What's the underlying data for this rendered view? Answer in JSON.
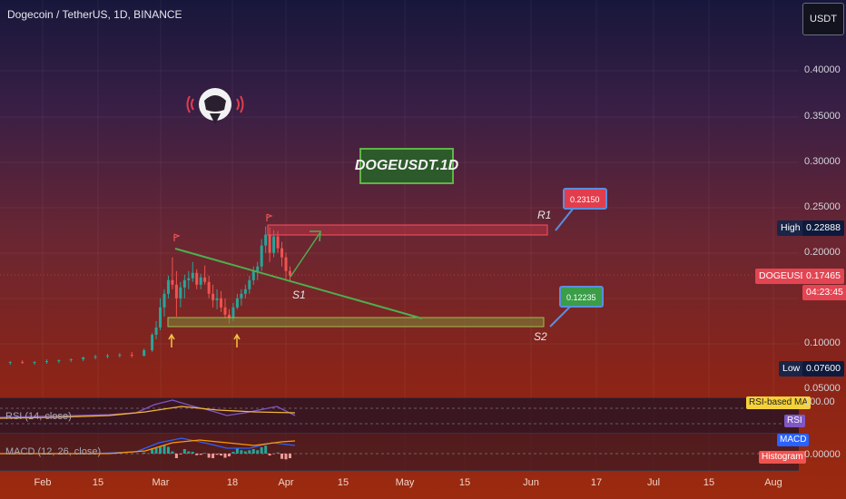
{
  "header": {
    "title": "Dogecoin / TetherUS, 1D, BINANCE",
    "currency_button": "USDT"
  },
  "price_axis": {
    "ticks": [
      "0.40000",
      "0.35000",
      "0.30000",
      "0.25000",
      "0.20000",
      "0.10000",
      "0.05000"
    ],
    "high": {
      "label": "High",
      "value": "0.22888"
    },
    "low": {
      "label": "Low",
      "value": "0.07600"
    },
    "symbol": {
      "label": "DOGEUSDT",
      "price": "0.17465",
      "countdown": "04:23:45"
    }
  },
  "annotations": {
    "banner": "DOGEUSDT.1D",
    "r1_callout": "0.23150",
    "s2_callout": "0.12235",
    "r1_label": "R1",
    "s1_label": "S1",
    "s2_label": "S2"
  },
  "indicators": {
    "rsi": {
      "label": "RSI (14, close)",
      "tag": "RSI",
      "ma_tag": "RSI-based MA",
      "value": "100.00"
    },
    "macd": {
      "label": "MACD (12, 26, close)",
      "tag": "MACD",
      "histogram_tag": "Histogram",
      "value": "0.00000"
    }
  },
  "time_axis": {
    "ticks": [
      "Feb",
      "15",
      "Mar",
      "18",
      "Apr",
      "15",
      "May",
      "15",
      "Jun",
      "17",
      "Jul",
      "15",
      "Aug"
    ]
  },
  "colors": {
    "up_candle": "#26a69a",
    "down_candle": "#ef5350",
    "trendline": "#4caf50",
    "resistance": "#e23d4c",
    "support": "#4caf50",
    "rsi_line": "#7e57c2",
    "rsi_ma": "#f0b43c",
    "macd_line": "#2962ff",
    "signal_line": "#ff9800"
  },
  "chart_data": {
    "type": "candlestick",
    "symbol": "DOGEUSDT",
    "interval": "1D",
    "exchange": "BINANCE",
    "ylim": [
      0.05,
      0.42
    ],
    "x": [
      "2024-01-21",
      "2024-01-24",
      "2024-01-27",
      "2024-01-30",
      "2024-02-02",
      "2024-02-05",
      "2024-02-08",
      "2024-02-11",
      "2024-02-14",
      "2024-02-17",
      "2024-02-20",
      "2024-02-23",
      "2024-02-26",
      "2024-02-28",
      "2024-02-29",
      "2024-03-01",
      "2024-03-02",
      "2024-03-03",
      "2024-03-04",
      "2024-03-05",
      "2024-03-06",
      "2024-03-07",
      "2024-03-08",
      "2024-03-09",
      "2024-03-10",
      "2024-03-11",
      "2024-03-12",
      "2024-03-13",
      "2024-03-14",
      "2024-03-15",
      "2024-03-16",
      "2024-03-17",
      "2024-03-18",
      "2024-03-19",
      "2024-03-20",
      "2024-03-21",
      "2024-03-22",
      "2024-03-23",
      "2024-03-24",
      "2024-03-25",
      "2024-03-26",
      "2024-03-27",
      "2024-03-28",
      "2024-03-29",
      "2024-03-30",
      "2024-03-31",
      "2024-04-01",
      "2024-04-02"
    ],
    "ohlc": [
      [
        0.08,
        0.082,
        0.078,
        0.079
      ],
      [
        0.079,
        0.081,
        0.077,
        0.08
      ],
      [
        0.08,
        0.082,
        0.078,
        0.079
      ],
      [
        0.079,
        0.081,
        0.077,
        0.08
      ],
      [
        0.08,
        0.083,
        0.078,
        0.081
      ],
      [
        0.081,
        0.083,
        0.079,
        0.082
      ],
      [
        0.082,
        0.084,
        0.08,
        0.083
      ],
      [
        0.083,
        0.086,
        0.081,
        0.085
      ],
      [
        0.085,
        0.088,
        0.083,
        0.086
      ],
      [
        0.086,
        0.089,
        0.084,
        0.087
      ],
      [
        0.087,
        0.09,
        0.085,
        0.088
      ],
      [
        0.088,
        0.091,
        0.085,
        0.087
      ],
      [
        0.087,
        0.095,
        0.086,
        0.093
      ],
      [
        0.093,
        0.112,
        0.091,
        0.11
      ],
      [
        0.11,
        0.125,
        0.105,
        0.118
      ],
      [
        0.118,
        0.15,
        0.115,
        0.14
      ],
      [
        0.14,
        0.16,
        0.13,
        0.155
      ],
      [
        0.155,
        0.175,
        0.15,
        0.17
      ],
      [
        0.17,
        0.195,
        0.16,
        0.165
      ],
      [
        0.165,
        0.18,
        0.13,
        0.15
      ],
      [
        0.15,
        0.168,
        0.14,
        0.162
      ],
      [
        0.162,
        0.176,
        0.15,
        0.17
      ],
      [
        0.17,
        0.18,
        0.16,
        0.172
      ],
      [
        0.172,
        0.19,
        0.168,
        0.178
      ],
      [
        0.178,
        0.182,
        0.16,
        0.165
      ],
      [
        0.165,
        0.177,
        0.16,
        0.173
      ],
      [
        0.173,
        0.186,
        0.165,
        0.168
      ],
      [
        0.168,
        0.175,
        0.15,
        0.155
      ],
      [
        0.155,
        0.165,
        0.14,
        0.148
      ],
      [
        0.148,
        0.16,
        0.138,
        0.15
      ],
      [
        0.15,
        0.158,
        0.135,
        0.14
      ],
      [
        0.14,
        0.15,
        0.128,
        0.132
      ],
      [
        0.132,
        0.138,
        0.122,
        0.128
      ],
      [
        0.128,
        0.145,
        0.125,
        0.14
      ],
      [
        0.14,
        0.155,
        0.138,
        0.15
      ],
      [
        0.15,
        0.16,
        0.142,
        0.155
      ],
      [
        0.155,
        0.165,
        0.15,
        0.16
      ],
      [
        0.16,
        0.175,
        0.155,
        0.17
      ],
      [
        0.17,
        0.185,
        0.165,
        0.18
      ],
      [
        0.18,
        0.19,
        0.17,
        0.185
      ],
      [
        0.185,
        0.215,
        0.18,
        0.208
      ],
      [
        0.208,
        0.229,
        0.2,
        0.22
      ],
      [
        0.22,
        0.228,
        0.19,
        0.2
      ],
      [
        0.2,
        0.225,
        0.195,
        0.218
      ],
      [
        0.218,
        0.224,
        0.2,
        0.205
      ],
      [
        0.205,
        0.212,
        0.185,
        0.195
      ],
      [
        0.195,
        0.2,
        0.17,
        0.18
      ],
      [
        0.18,
        0.185,
        0.168,
        0.175
      ]
    ],
    "levels": {
      "high": 0.22888,
      "low": 0.076,
      "last": 0.17465,
      "resistance_R1": 0.2315,
      "support_S2": 0.12235
    }
  }
}
